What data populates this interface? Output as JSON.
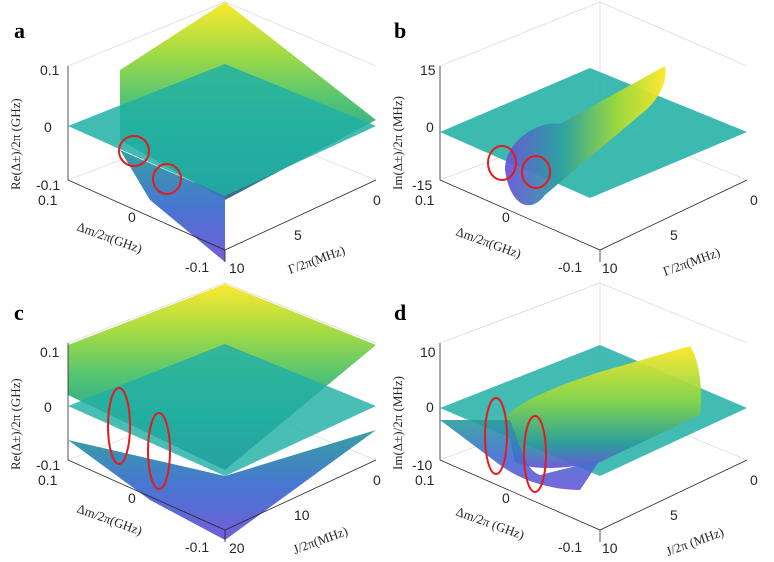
{
  "chart_data": [
    {
      "type": "surface",
      "panel": "a",
      "zlabel": "Re(Δ±)/2π (GHz)",
      "xlabel": "Δm/2π(GHz)",
      "ylabel": "Γ/2π(MHz)",
      "zticks": [
        "0.1",
        "0",
        "-0.1"
      ],
      "xticks": [
        "0.1",
        "0",
        "-0.1"
      ],
      "yticks": [
        "10",
        "5",
        "0"
      ],
      "zlim": [
        -0.1,
        0.1
      ],
      "xlim": [
        -0.1,
        0.1
      ],
      "ylim": [
        0,
        10
      ],
      "colormap": [
        "#440154",
        "#3b528b",
        "#21918c",
        "#5ec962",
        "#fde725"
      ],
      "marker_color": "#e41a1c",
      "markers": 2
    },
    {
      "type": "surface",
      "panel": "b",
      "zlabel": "Im(Δ±)/2π (MHz)",
      "xlabel": "Δm/2π(GHz)",
      "ylabel": "Γ/2π(MHz)",
      "zticks": [
        "15",
        "0",
        "-15"
      ],
      "xticks": [
        "0.1",
        "0",
        "-0.1"
      ],
      "yticks": [
        "10",
        "5",
        "0"
      ],
      "zlim": [
        -15,
        15
      ],
      "xlim": [
        -0.1,
        0.1
      ],
      "ylim": [
        0,
        10
      ],
      "colormap": [
        "#440154",
        "#3b528b",
        "#21918c",
        "#5ec962",
        "#fde725"
      ],
      "marker_color": "#e41a1c",
      "markers": 2
    },
    {
      "type": "surface",
      "panel": "c",
      "zlabel": "Re(Δ±)/2π (GHz)",
      "xlabel": "Δm/2π(GHz)",
      "ylabel": "J/2π(MHz)",
      "zticks": [
        "0.1",
        "0",
        "-0.1"
      ],
      "xticks": [
        "0.1",
        "0",
        "-0.1"
      ],
      "yticks": [
        "20",
        "10",
        "0"
      ],
      "zlim": [
        -0.1,
        0.1
      ],
      "xlim": [
        -0.1,
        0.1
      ],
      "ylim": [
        0,
        20
      ],
      "colormap": [
        "#440154",
        "#3b528b",
        "#21918c",
        "#5ec962",
        "#fde725"
      ],
      "marker_color": "#e41a1c",
      "markers": 2
    },
    {
      "type": "surface",
      "panel": "d",
      "zlabel": "Im(Δ±)/2π (MHz)",
      "xlabel": "Δm/2π (GHz)",
      "ylabel": "J/2π (MHz)",
      "zticks": [
        "10",
        "0",
        "-10"
      ],
      "xticks": [
        "0.1",
        "0",
        "-0.1"
      ],
      "yticks": [
        "10",
        "5",
        "0"
      ],
      "zlim": [
        -10,
        10
      ],
      "xlim": [
        -0.1,
        0.1
      ],
      "ylim": [
        0,
        10
      ],
      "colormap": [
        "#440154",
        "#3b528b",
        "#21918c",
        "#5ec962",
        "#fde725"
      ],
      "marker_color": "#e41a1c",
      "markers": 2
    }
  ]
}
